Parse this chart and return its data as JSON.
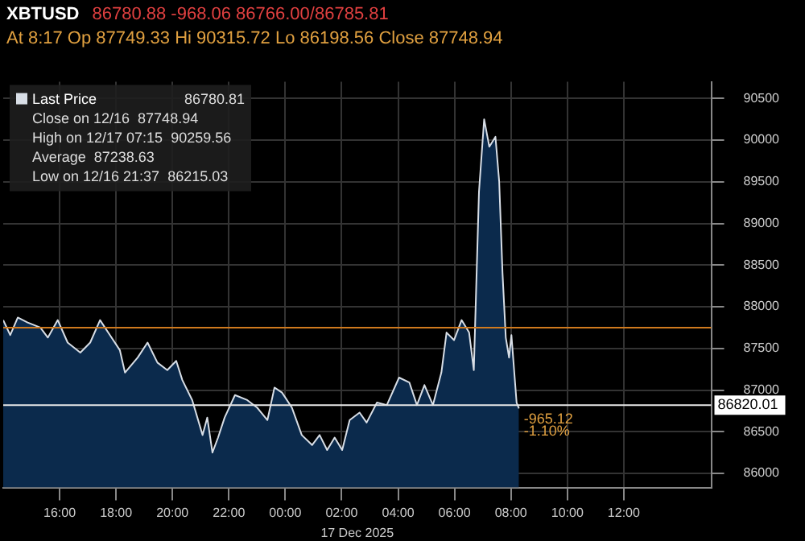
{
  "chart_data": {
    "type": "area",
    "title": "XBTUSD",
    "subtitle": "86780.88  -968.06  86766.00/86785.81",
    "annotations": [
      "At 8:17  Op 87749.33  Hi 90315.72  Lo 86198.56  Close 87748.94",
      "86780.81",
      "Close on 12/16  87748.94",
      "High on 12/17 07:15  90259.56",
      "Average  87238.63",
      "Low on 12/16 21:37  86215.03",
      {
        "text": "-965.12",
        "x": "2025-12-17T08:17",
        "y": 86650
      },
      {
        "text": "-1.10%",
        "x": "2025-12-17T08:17",
        "y": 86500
      }
    ],
    "xlabel": "17 Dec 2025",
    "series": [
      {
        "name": "Last Price",
        "color": "#d8dee6",
        "x": [
          "2025-12-16T14:00",
          "2025-12-16T14:15",
          "2025-12-16T14:31",
          "2025-12-16T14:52",
          "2025-12-16T15:19",
          "2025-12-16T15:35",
          "2025-12-16T15:56",
          "2025-12-16T16:17",
          "2025-12-16T16:44",
          "2025-12-16T17:05",
          "2025-12-16T17:26",
          "2025-12-16T17:47",
          "2025-12-16T18:08",
          "2025-12-16T18:19",
          "2025-12-16T18:46",
          "2025-12-16T19:07",
          "2025-12-16T19:28",
          "2025-12-16T19:49",
          "2025-12-16T20:08",
          "2025-12-16T20:21",
          "2025-12-16T20:42",
          "2025-12-16T21:04",
          "2025-12-16T21:14",
          "2025-12-16T21:25",
          "2025-12-16T21:37",
          "2025-12-16T21:51",
          "2025-12-16T22:13",
          "2025-12-16T22:39",
          "2025-12-16T23:00",
          "2025-12-16T23:22",
          "2025-12-16T23:37",
          "2025-12-16T23:53",
          "2025-12-17T00:14",
          "2025-12-17T00:35",
          "2025-12-17T00:57",
          "2025-12-17T01:13",
          "2025-12-17T01:29",
          "2025-12-17T01:45",
          "2025-12-17T02:01",
          "2025-12-17T02:17",
          "2025-12-17T02:38",
          "2025-12-17T02:53",
          "2025-12-17T03:15",
          "2025-12-17T03:36",
          "2025-12-17T04:02",
          "2025-12-17T04:24",
          "2025-12-17T04:40",
          "2025-12-17T04:56",
          "2025-12-17T05:14",
          "2025-12-17T05:32",
          "2025-12-17T05:43",
          "2025-12-17T05:59",
          "2025-12-17T06:15",
          "2025-12-17T06:31",
          "2025-12-17T06:41",
          "2025-12-17T06:52",
          "2025-12-17T07:03",
          "2025-12-17T07:14",
          "2025-12-17T07:27",
          "2025-12-17T07:35",
          "2025-12-17T07:42",
          "2025-12-17T07:49",
          "2025-12-17T07:56",
          "2025-12-17T08:01",
          "2025-12-17T08:12",
          "2025-12-17T08:17"
        ],
        "values": [
          87840,
          87660,
          87870,
          87810,
          87750,
          87630,
          87840,
          87570,
          87450,
          87570,
          87840,
          87660,
          87480,
          87210,
          87390,
          87570,
          87330,
          87240,
          87350,
          87120,
          86880,
          86460,
          86670,
          86250,
          86430,
          86670,
          86940,
          86880,
          86790,
          86640,
          87030,
          86970,
          86790,
          86460,
          86340,
          86460,
          86280,
          86430,
          86280,
          86640,
          86730,
          86610,
          86850,
          86820,
          87150,
          87090,
          86820,
          87060,
          86820,
          87210,
          87690,
          87600,
          87840,
          87690,
          87240,
          89380,
          90250,
          89920,
          90040,
          89500,
          88410,
          87630,
          87390,
          87660,
          86850,
          86780
        ]
      }
    ],
    "xlim": [
      "2025-12-16T14:00",
      "2025-12-17T15:06"
    ],
    "xticks": [
      {
        "value": "2025-12-16T16:00",
        "label": "16:00"
      },
      {
        "value": "2025-12-16T18:00",
        "label": "18:00"
      },
      {
        "value": "2025-12-16T20:00",
        "label": "20:00"
      },
      {
        "value": "2025-12-16T22:00",
        "label": "22:00"
      },
      {
        "value": "2025-12-17T00:00",
        "label": "00:00"
      },
      {
        "value": "2025-12-17T02:00",
        "label": "02:00"
      },
      {
        "value": "2025-12-17T04:00",
        "label": "04:00"
      },
      {
        "value": "2025-12-17T06:00",
        "label": "06:00"
      },
      {
        "value": "2025-12-17T08:00",
        "label": "08:00"
      },
      {
        "value": "2025-12-17T10:00",
        "label": "10:00"
      },
      {
        "value": "2025-12-17T12:00",
        "label": "12:00"
      }
    ],
    "ylim": [
      85830,
      90700
    ],
    "yticks": [
      86000,
      86500,
      87000,
      87500,
      88000,
      88500,
      89000,
      89500,
      90000,
      90500
    ],
    "ref_lines": [
      {
        "axis": "y",
        "value": 87748.94,
        "label": null,
        "color": "#d07a1e"
      },
      {
        "axis": "y",
        "value": 86820.01,
        "label": "86820.01",
        "color": "#e8e8e8"
      }
    ],
    "grid": true,
    "legend": "top left"
  }
}
